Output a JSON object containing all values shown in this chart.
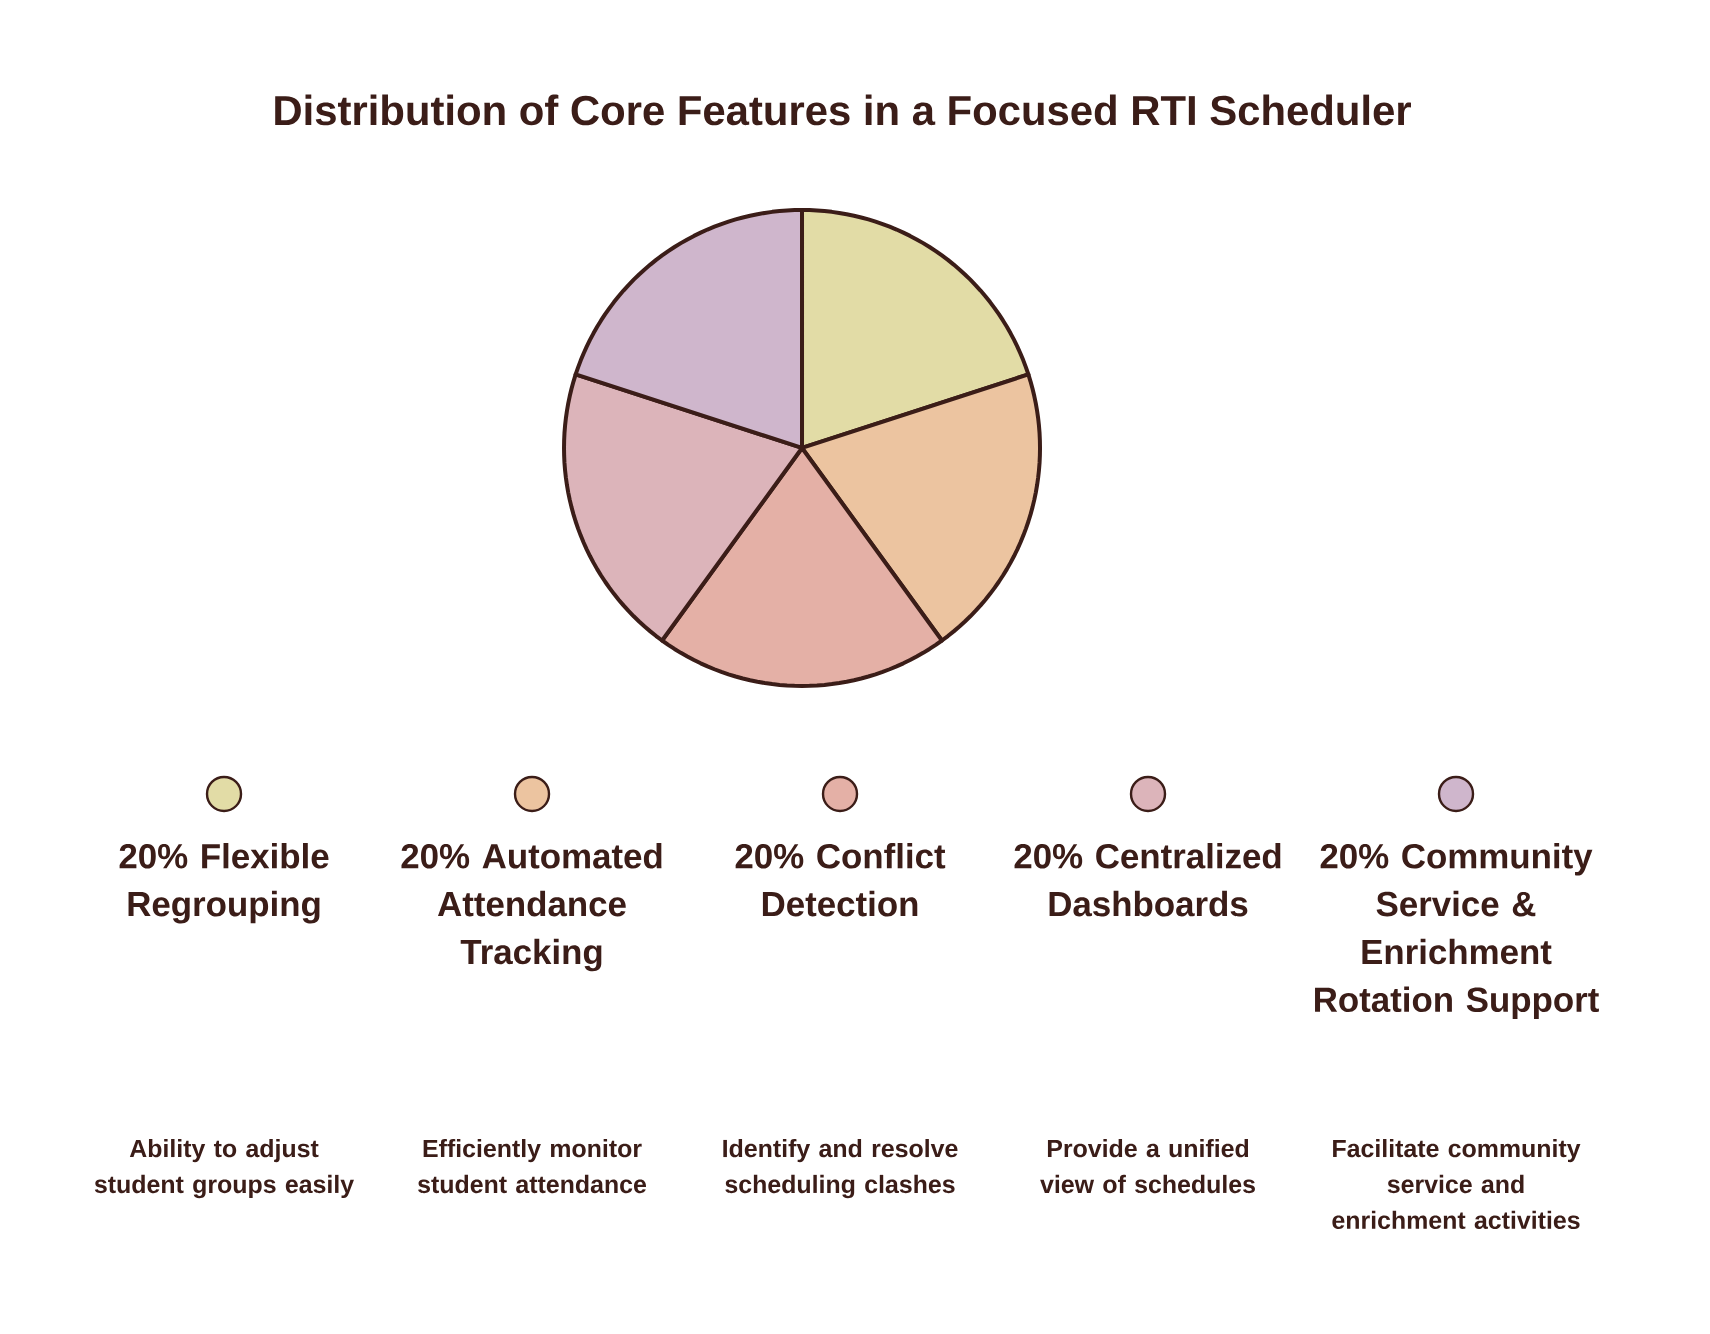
{
  "chart_data": {
    "type": "pie",
    "title": "Distribution of Core Features in a Focused RTI Scheduler",
    "categories": [
      "Flexible Regrouping",
      "Automated Attendance Tracking",
      "Conflict Detection",
      "Centralized Dashboards",
      "Community Service & Enrichment Rotation Support"
    ],
    "values": [
      20,
      20,
      20,
      20,
      20
    ],
    "value_labels": [
      "20%",
      "20%",
      "20%",
      "20%",
      "20%"
    ],
    "colors": [
      "#e2dca6",
      "#ecc4a0",
      "#e4b0a6",
      "#dcb4ba",
      "#cfb6cc"
    ],
    "legend": "bottom",
    "annotations": [
      "Ability to adjust student groups easily",
      "Efficiently monitor student attendance",
      "Identify and resolve scheduling clashes",
      "Provide a unified view of schedules",
      "Facilitate community service and enrichment activities"
    ]
  }
}
